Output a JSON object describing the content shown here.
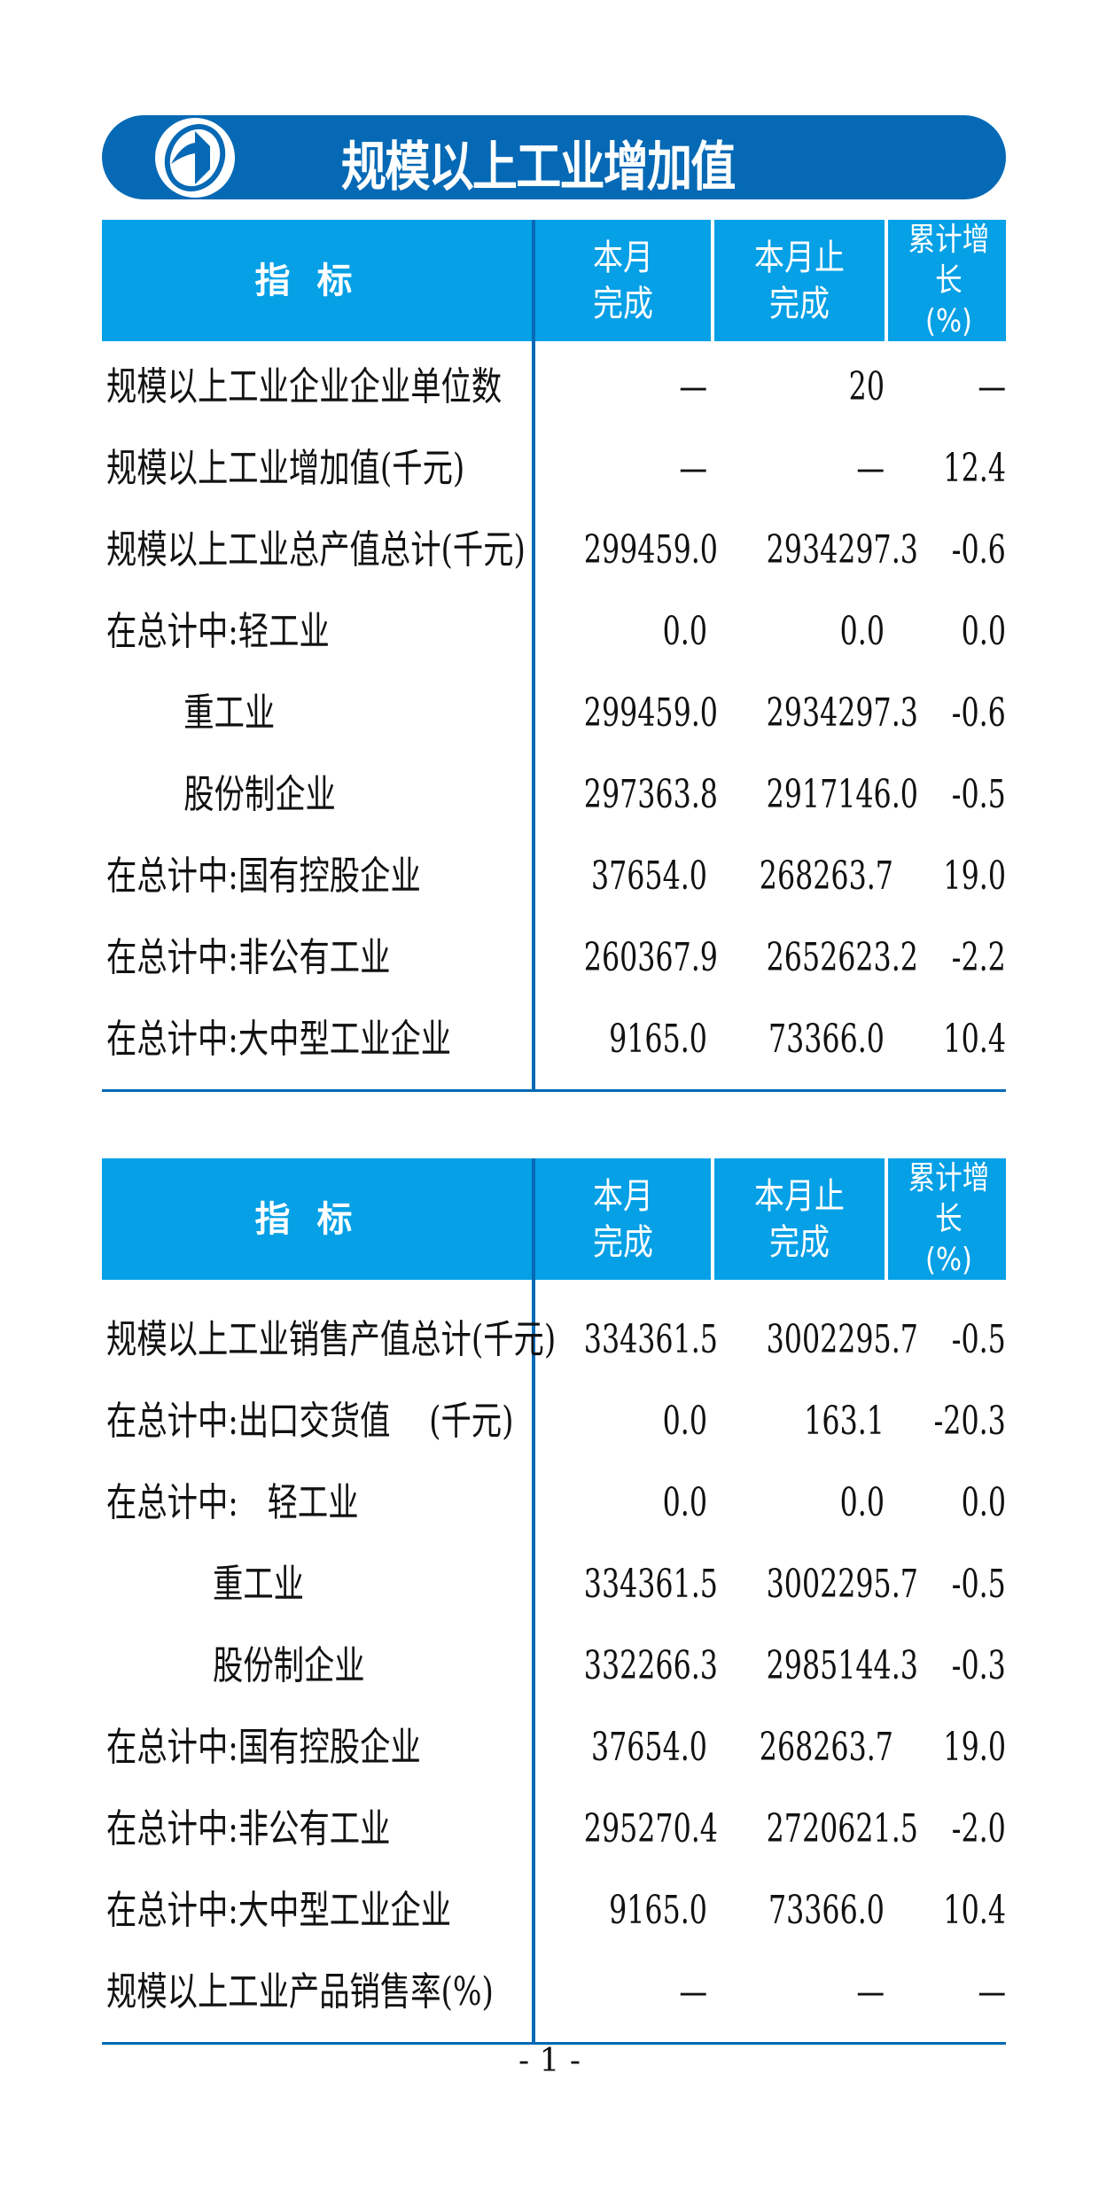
{
  "title": "规模以上工业增加值",
  "colors": {
    "brand_dark": "#0569b5",
    "header_bg": "#05a0e6"
  },
  "header": {
    "indicator": "指标",
    "month": "本月\n完成",
    "ytd": "本月止\n完成",
    "growth": "累计增长\n(%)"
  },
  "table1": [
    {
      "label": "规模以上工业企业企业单位数",
      "month": "—",
      "ytd": "20",
      "growth": "—"
    },
    {
      "label": "规模以上工业增加值(千元)",
      "month": "—",
      "ytd": "—",
      "growth": "12.4"
    },
    {
      "label": "规模以上工业总产值总计(千元)",
      "month": "299459.0",
      "ytd": "2934297.3",
      "growth": "-0.6"
    },
    {
      "label": "在总计中:轻工业",
      "month": "0.0",
      "ytd": "0.0",
      "growth": "0.0"
    },
    {
      "label": "        重工业",
      "month": "299459.0",
      "ytd": "2934297.3",
      "growth": "-0.6"
    },
    {
      "label": "        股份制企业",
      "month": "297363.8",
      "ytd": "2917146.0",
      "growth": "-0.5"
    },
    {
      "label": "在总计中:国有控股企业",
      "month": "37654.0",
      "ytd": "268263.7",
      "growth": "19.0"
    },
    {
      "label": "在总计中:非公有工业",
      "month": "260367.9",
      "ytd": "2652623.2",
      "growth": "-2.2"
    },
    {
      "label": "在总计中:大中型工业企业",
      "month": "9165.0",
      "ytd": "73366.0",
      "growth": "10.4"
    }
  ],
  "table2": [
    {
      "label": "规模以上工业销售产值总计(千元)",
      "month": "334361.5",
      "ytd": "3002295.7",
      "growth": "-0.5"
    },
    {
      "label": "在总计中:出口交货值    (千元)",
      "month": "0.0",
      "ytd": "163.1",
      "growth": "-20.3"
    },
    {
      "label": "在总计中:   轻工业",
      "month": "0.0",
      "ytd": "0.0",
      "growth": "0.0"
    },
    {
      "label": "           重工业",
      "month": "334361.5",
      "ytd": "3002295.7",
      "growth": "-0.5"
    },
    {
      "label": "           股份制企业",
      "month": "332266.3",
      "ytd": "2985144.3",
      "growth": "-0.3"
    },
    {
      "label": "在总计中:国有控股企业",
      "month": "37654.0",
      "ytd": "268263.7",
      "growth": "19.0"
    },
    {
      "label": "在总计中:非公有工业",
      "month": "295270.4",
      "ytd": "2720621.5",
      "growth": "-2.0"
    },
    {
      "label": "在总计中:大中型工业企业",
      "month": "9165.0",
      "ytd": "73366.0",
      "growth": "10.4"
    },
    {
      "label": "规模以上工业产品销售率(%)",
      "month": "—",
      "ytd": "—",
      "growth": "—"
    }
  ],
  "page_number": "- 1 -"
}
